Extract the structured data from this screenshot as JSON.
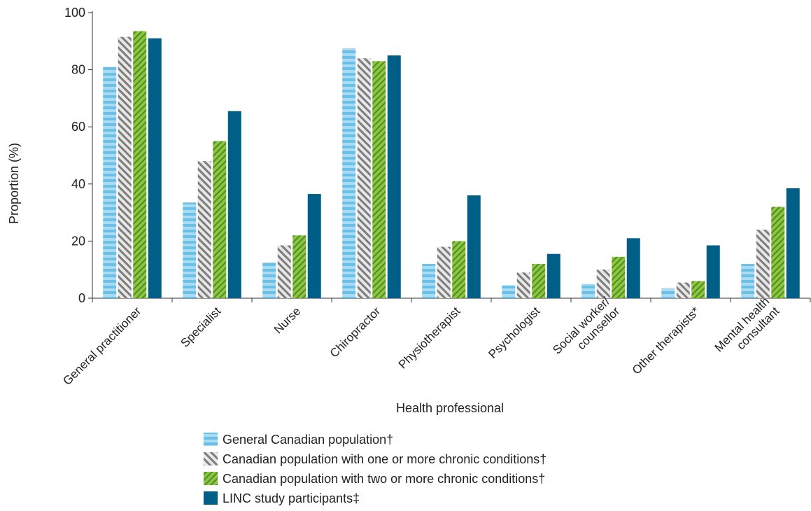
{
  "chart_data": {
    "type": "bar",
    "ylabel": "Proportion (%)",
    "xlabel": "Health professional",
    "ylim": [
      0,
      100
    ],
    "yticks": [
      0,
      20,
      40,
      60,
      80,
      100
    ],
    "grid": false,
    "legend_position": "bottom",
    "categories": [
      [
        "General practitioner"
      ],
      [
        "Specialist"
      ],
      [
        "Nurse"
      ],
      [
        "Chiropractor"
      ],
      [
        "Physiotherapist"
      ],
      [
        "Psychologist"
      ],
      [
        "Social worker/",
        "counsellor"
      ],
      [
        "Other therapists*"
      ],
      [
        "Mental health",
        "consultant"
      ]
    ],
    "series": [
      {
        "name": "General Canadian population†",
        "pattern": "h-stripes",
        "color": "#7fc8e8",
        "values": [
          81,
          33.5,
          12.5,
          87.5,
          12,
          4.5,
          5,
          3.5,
          12
        ]
      },
      {
        "name": "Canadian population with one or more chronic conditions†",
        "pattern": "diag-gray",
        "color": "#8c8c8c",
        "values": [
          91.5,
          48,
          18.5,
          84,
          18,
          9,
          10,
          5.5,
          24
        ]
      },
      {
        "name": "Canadian population with two or more chronic conditions†",
        "pattern": "diag-green",
        "color": "#7ab648",
        "values": [
          93.5,
          55,
          22,
          83,
          20,
          12,
          14.5,
          6,
          32
        ]
      },
      {
        "name": "LINC study participants‡",
        "pattern": "solid",
        "color": "#005f86",
        "values": [
          91,
          65.5,
          36.5,
          85,
          36,
          15.5,
          21,
          18.5,
          38.5
        ]
      }
    ]
  }
}
